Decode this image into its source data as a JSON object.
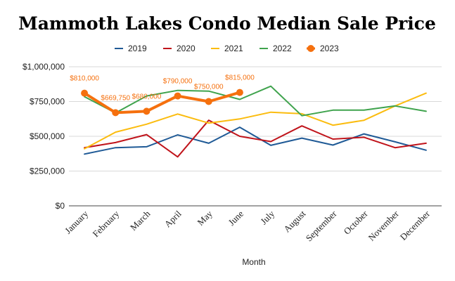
{
  "chart_data": {
    "type": "line",
    "title": "Mammoth Lakes Condo Median Sale Price",
    "xlabel": "Month",
    "ylabel": "",
    "ylim": [
      0,
      1000000
    ],
    "yticks": [
      0,
      250000,
      500000,
      750000,
      1000000
    ],
    "ytick_labels": [
      "$0",
      "$250,000",
      "$500,000",
      "$750,000",
      "$1,000,000"
    ],
    "grid": true,
    "legend_position": "top",
    "categories": [
      "January",
      "February",
      "March",
      "April",
      "May",
      "June",
      "July",
      "August",
      "September",
      "October",
      "November",
      "December"
    ],
    "series": [
      {
        "name": "2019",
        "color": "#1f5a96",
        "values": [
          372000,
          418000,
          425000,
          510000,
          450000,
          565000,
          435000,
          487000,
          437000,
          517000,
          460000,
          400000
        ]
      },
      {
        "name": "2020",
        "color": "#c0141b",
        "values": [
          418000,
          455000,
          512000,
          352000,
          615000,
          500000,
          462000,
          575000,
          480000,
          493000,
          418000,
          450000
        ]
      },
      {
        "name": "2021",
        "color": "#fbbc0f",
        "values": [
          410000,
          530000,
          587000,
          660000,
          595000,
          625000,
          673000,
          662000,
          580000,
          615000,
          718000,
          810000
        ]
      },
      {
        "name": "2022",
        "color": "#3fa34d",
        "values": [
          785000,
          668000,
          790000,
          830000,
          825000,
          765000,
          860000,
          648000,
          688000,
          688000,
          718000,
          680000
        ]
      },
      {
        "name": "2023",
        "color": "#f5700e",
        "values": [
          810000,
          669750,
          680000,
          790000,
          750000,
          815000,
          null,
          null,
          null,
          null,
          null,
          null
        ],
        "data_labels": [
          "$810,000",
          "$669,750",
          "$680,000",
          "$790,000",
          "$750,000",
          "$815,000"
        ]
      }
    ]
  }
}
